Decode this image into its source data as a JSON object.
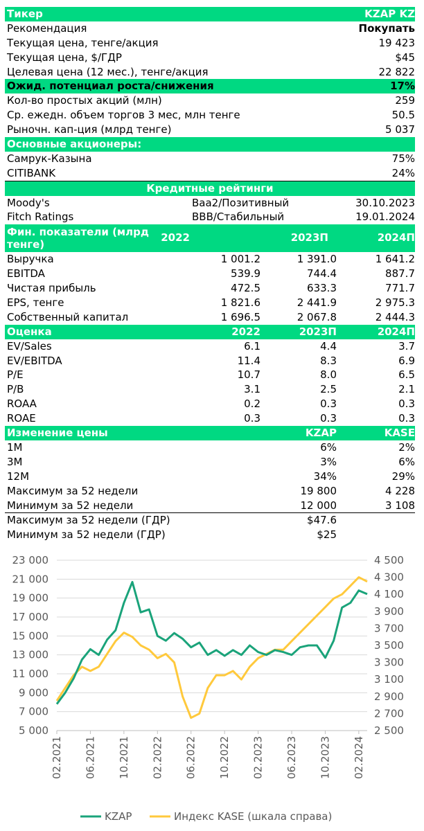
{
  "header": {
    "title": "Тикер",
    "ticker": "KZAP KZ"
  },
  "summary": [
    {
      "label": "Рекомендация",
      "value": "Покупать",
      "bold": true
    },
    {
      "label": "Текущая цена, тенге/акция",
      "value": "19 423"
    },
    {
      "label": "Текущая цена, $/ГДР",
      "value": "$45"
    },
    {
      "label": "Целевая цена (12 мес.), тенге/акция",
      "value": "22 822"
    }
  ],
  "potential": {
    "label": "Ожид. потенциал роста/снижения",
    "value": "17%"
  },
  "market": [
    {
      "label": "Кол-во простых акций (млн)",
      "value": "259"
    },
    {
      "label": "Ср. ежедн. объем торгов 3 мес, млн тенге",
      "value": "50.5"
    },
    {
      "label": "Рыночн. кап-ция (млрд тенге)",
      "value": "5 037"
    }
  ],
  "shareholders": {
    "title": "Основные акционеры:",
    "items": [
      {
        "label": "Самрук-Казына",
        "value": "75%"
      },
      {
        "label": "CITIBANK",
        "value": "24%"
      }
    ]
  },
  "ratings": {
    "title": "Кредитные рейтинги",
    "items": [
      {
        "agency": "Moody's",
        "rating": "Baa2/Позитивный",
        "date": "30.10.2023"
      },
      {
        "agency": "Fitch Ratings",
        "rating": "BBB/Стабильный",
        "date": "19.01.2024"
      }
    ]
  },
  "financials": {
    "title": "Фин. показатели (млрд тенге)",
    "columns": [
      "2022",
      "2023П",
      "2024П"
    ],
    "rows": [
      {
        "label": "Выручка",
        "values": [
          "1 001.2",
          "1 391.0",
          "1 641.2"
        ]
      },
      {
        "label": "EBITDA",
        "values": [
          "539.9",
          "744.4",
          "887.7"
        ]
      },
      {
        "label": "Чистая прибыль",
        "values": [
          "472.5",
          "633.3",
          "771.7"
        ]
      },
      {
        "label": "EPS, тенге",
        "values": [
          "1 821.6",
          "2 441.9",
          "2 975.3"
        ]
      },
      {
        "label": "Собственный капитал",
        "values": [
          "1 696.5",
          "2 067.8",
          "2 444.3"
        ]
      }
    ]
  },
  "valuation": {
    "title": "Оценка",
    "columns": [
      "2022",
      "2023П",
      "2024П"
    ],
    "rows": [
      {
        "label": "EV/Sales",
        "values": [
          "6.1",
          "4.4",
          "3.7"
        ]
      },
      {
        "label": "EV/EBITDA",
        "values": [
          "11.4",
          "8.3",
          "6.9"
        ]
      },
      {
        "label": "P/E",
        "values": [
          "10.7",
          "8.0",
          "6.5"
        ]
      },
      {
        "label": "P/B",
        "values": [
          "3.1",
          "2.5",
          "2.1"
        ]
      },
      {
        "label": "ROAA",
        "values": [
          "0.2",
          "0.3",
          "0.3"
        ]
      },
      {
        "label": "ROAE",
        "values": [
          "0.3",
          "0.3",
          "0.3"
        ]
      }
    ]
  },
  "price_change": {
    "title": "Изменение цены",
    "columns": [
      "KZAP",
      "KASE"
    ],
    "rows": [
      {
        "label": "1M",
        "values": [
          "6%",
          "2%"
        ]
      },
      {
        "label": "3M",
        "values": [
          "3%",
          "6%"
        ]
      },
      {
        "label": "12M",
        "values": [
          "34%",
          "29%"
        ]
      },
      {
        "label": "Максимум за 52 недели",
        "values": [
          "19 800",
          "4 228"
        ]
      },
      {
        "label": "Минимум за 52 недели",
        "values": [
          "12 000",
          "3 108"
        ]
      }
    ],
    "gdr_rows": [
      {
        "label": "Максимум за 52 недели (ГДР)",
        "value": "$47.6"
      },
      {
        "label": "Минимум за 52 недели (ГДР)",
        "value": "$25"
      }
    ]
  },
  "colors": {
    "accent": "#00d982",
    "kzap_line": "#1aa37a",
    "kase_line": "#ffc93c",
    "grid": "#d9d9d9",
    "axis_text": "#595959"
  },
  "chart_data": {
    "type": "line",
    "y_left": {
      "ticks": [
        "5 000",
        "7 000",
        "9 000",
        "11 000",
        "13 000",
        "15 000",
        "17 000",
        "19 000",
        "21 000",
        "23 000"
      ],
      "lim": [
        5000,
        23000
      ]
    },
    "y_right": {
      "ticks": [
        "2 500",
        "2 700",
        "2 900",
        "3 100",
        "3 300",
        "3 500",
        "3 700",
        "3 900",
        "4 100",
        "4 300",
        "4 500"
      ],
      "lim": [
        2500,
        4500
      ]
    },
    "x_ticks": [
      "02.2021",
      "06.2021",
      "10.2021",
      "02.2022",
      "06.2022",
      "10.2022",
      "02.2023",
      "06.2023",
      "10.2023",
      "02.2024"
    ],
    "x_range": [
      "2021-02",
      "2024-03"
    ],
    "grid": "horizontal",
    "legend_position": "bottom",
    "series": [
      {
        "name": "KZAP",
        "axis": "left",
        "points": [
          [
            "2021-02",
            7800
          ],
          [
            "2021-03",
            9000
          ],
          [
            "2021-04",
            10500
          ],
          [
            "2021-05",
            12500
          ],
          [
            "2021-06",
            13600
          ],
          [
            "2021-07",
            13000
          ],
          [
            "2021-08",
            14600
          ],
          [
            "2021-09",
            15600
          ],
          [
            "2021-10",
            18500
          ],
          [
            "2021-11",
            20700
          ],
          [
            "2021-12",
            17500
          ],
          [
            "2022-01",
            17800
          ],
          [
            "2022-02",
            15000
          ],
          [
            "2022-03",
            14500
          ],
          [
            "2022-04",
            15300
          ],
          [
            "2022-05",
            14700
          ],
          [
            "2022-06",
            13800
          ],
          [
            "2022-07",
            14300
          ],
          [
            "2022-08",
            13000
          ],
          [
            "2022-09",
            13500
          ],
          [
            "2022-10",
            12900
          ],
          [
            "2022-11",
            13500
          ],
          [
            "2022-12",
            13000
          ],
          [
            "2023-01",
            14000
          ],
          [
            "2023-02",
            13300
          ],
          [
            "2023-03",
            13000
          ],
          [
            "2023-04",
            13500
          ],
          [
            "2023-05",
            13300
          ],
          [
            "2023-06",
            13000
          ],
          [
            "2023-07",
            13800
          ],
          [
            "2023-08",
            14000
          ],
          [
            "2023-09",
            14000
          ],
          [
            "2023-10",
            12700
          ],
          [
            "2023-11",
            14500
          ],
          [
            "2023-12",
            18000
          ],
          [
            "2024-01",
            18500
          ],
          [
            "2024-02",
            19800
          ],
          [
            "2024-03",
            19423
          ]
        ]
      },
      {
        "name": "Индекс KASE (шкала справа)",
        "axis": "right",
        "points": [
          [
            "2021-02",
            2850
          ],
          [
            "2021-03",
            3000
          ],
          [
            "2021-04",
            3150
          ],
          [
            "2021-05",
            3250
          ],
          [
            "2021-06",
            3200
          ],
          [
            "2021-07",
            3250
          ],
          [
            "2021-08",
            3400
          ],
          [
            "2021-09",
            3550
          ],
          [
            "2021-10",
            3650
          ],
          [
            "2021-11",
            3600
          ],
          [
            "2021-12",
            3500
          ],
          [
            "2022-01",
            3450
          ],
          [
            "2022-02",
            3350
          ],
          [
            "2022-03",
            3400
          ],
          [
            "2022-04",
            3300
          ],
          [
            "2022-05",
            2900
          ],
          [
            "2022-06",
            2650
          ],
          [
            "2022-07",
            2700
          ],
          [
            "2022-08",
            3000
          ],
          [
            "2022-09",
            3150
          ],
          [
            "2022-10",
            3150
          ],
          [
            "2022-11",
            3200
          ],
          [
            "2022-12",
            3100
          ],
          [
            "2023-01",
            3250
          ],
          [
            "2023-02",
            3350
          ],
          [
            "2023-03",
            3400
          ],
          [
            "2023-04",
            3450
          ],
          [
            "2023-05",
            3450
          ],
          [
            "2023-06",
            3550
          ],
          [
            "2023-07",
            3650
          ],
          [
            "2023-08",
            3750
          ],
          [
            "2023-09",
            3850
          ],
          [
            "2023-10",
            3950
          ],
          [
            "2023-11",
            4050
          ],
          [
            "2023-12",
            4100
          ],
          [
            "2024-01",
            4200
          ],
          [
            "2024-02",
            4300
          ],
          [
            "2024-03",
            4250
          ]
        ]
      }
    ]
  }
}
